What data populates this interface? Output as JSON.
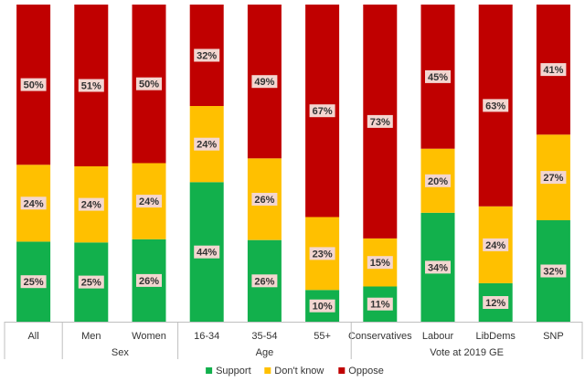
{
  "chart_data": {
    "type": "bar",
    "stacked": true,
    "percent": true,
    "ylim": [
      0,
      100
    ],
    "grid": false,
    "legend_position": "bottom",
    "categories": [
      "All",
      "Men",
      "Women",
      "16-34",
      "35-54",
      "55+",
      "Conservatives",
      "Labour",
      "LibDems",
      "SNP"
    ],
    "groups": [
      {
        "label": "",
        "categories": [
          "All"
        ]
      },
      {
        "label": "Sex",
        "categories": [
          "Men",
          "Women"
        ]
      },
      {
        "label": "Age",
        "categories": [
          "16-34",
          "35-54",
          "55+"
        ]
      },
      {
        "label": "Vote at 2019 GE",
        "categories": [
          "Conservatives",
          "Labour",
          "LibDems",
          "SNP"
        ]
      }
    ],
    "series": [
      {
        "name": "Support",
        "color": "#12b04c",
        "values": [
          25,
          25,
          26,
          44,
          26,
          10,
          11,
          34,
          12,
          32
        ]
      },
      {
        "name": "Don't know",
        "color": "#ffc000",
        "values": [
          24,
          24,
          24,
          24,
          26,
          23,
          15,
          20,
          24,
          27
        ]
      },
      {
        "name": "Oppose",
        "color": "#c00000",
        "values": [
          50,
          51,
          50,
          32,
          49,
          67,
          73,
          45,
          63,
          41
        ]
      }
    ],
    "value_suffix": "%"
  }
}
